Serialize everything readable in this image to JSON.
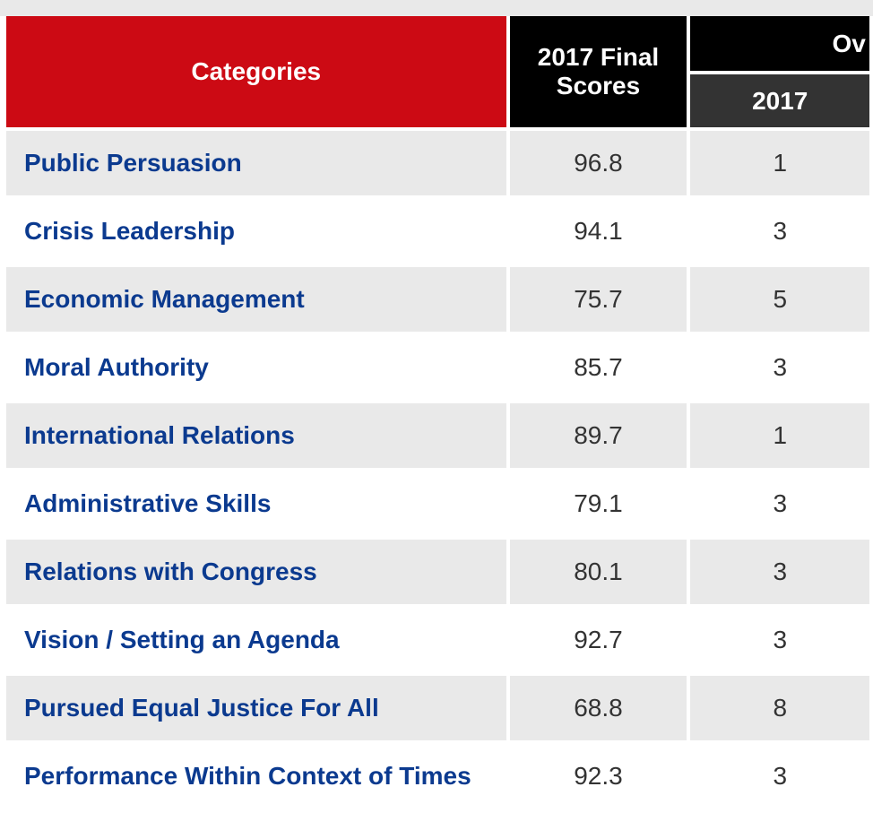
{
  "table": {
    "headers": {
      "categories": "Categories",
      "final_scores_line1": "2017 Final",
      "final_scores_line2": "Scores",
      "overall_partial": "Ov",
      "year": "2017"
    },
    "rows": [
      {
        "category": "Public Persuasion",
        "score": "96.8",
        "rank": "1"
      },
      {
        "category": "Crisis Leadership",
        "score": "94.1",
        "rank": "3"
      },
      {
        "category": "Economic Management",
        "score": "75.7",
        "rank": "5"
      },
      {
        "category": "Moral Authority",
        "score": "85.7",
        "rank": "3"
      },
      {
        "category": "International Relations",
        "score": "89.7",
        "rank": "1"
      },
      {
        "category": "Administrative Skills",
        "score": "79.1",
        "rank": "3"
      },
      {
        "category": "Relations with Congress",
        "score": "80.1",
        "rank": "3"
      },
      {
        "category": "Vision / Setting an Agenda",
        "score": "92.7",
        "rank": "3"
      },
      {
        "category": "Pursued Equal Justice For All",
        "score": "68.8",
        "rank": "8"
      },
      {
        "category": "Performance Within Context of Times",
        "score": "92.3",
        "rank": "3"
      }
    ]
  },
  "colors": {
    "category_header_bg": "#cc0a14",
    "score_header_bg": "#000000",
    "year_header_bg": "#333333",
    "category_text": "#0b3a8f",
    "row_alt_bg": "#e9e9e9"
  }
}
